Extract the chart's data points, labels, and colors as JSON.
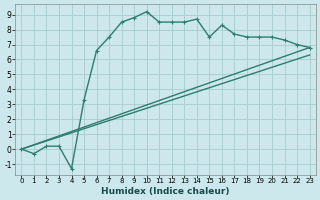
{
  "xlabel": "Humidex (Indice chaleur)",
  "bg_color": "#cce8ec",
  "line_color": "#2e7d6e",
  "grid_color": "#a8cccc",
  "xlim": [
    -0.5,
    23.5
  ],
  "ylim": [
    -1.7,
    9.7
  ],
  "xticks": [
    0,
    1,
    2,
    3,
    4,
    5,
    6,
    7,
    8,
    9,
    10,
    11,
    12,
    13,
    14,
    15,
    16,
    17,
    18,
    19,
    20,
    21,
    22,
    23
  ],
  "yticks": [
    -1,
    0,
    1,
    2,
    3,
    4,
    5,
    6,
    7,
    8,
    9
  ],
  "line1_x": [
    0,
    1,
    2,
    3,
    4,
    5,
    6,
    7,
    8,
    9,
    10,
    11,
    12,
    13,
    14,
    15,
    16,
    17,
    18,
    19,
    20,
    21,
    22,
    23
  ],
  "line1_y": [
    0,
    -0.3,
    0.2,
    0.2,
    -1.3,
    3.3,
    6.6,
    7.5,
    8.5,
    8.8,
    9.2,
    8.5,
    8.5,
    8.5,
    8.7,
    7.5,
    8.3,
    7.7,
    7.5,
    7.5,
    7.5,
    7.3,
    7.0,
    6.8
  ],
  "line2_x": [
    0,
    23
  ],
  "line2_y": [
    0,
    6.8
  ],
  "line3_x": [
    0,
    23
  ],
  "line3_y": [
    0,
    6.3
  ],
  "markersize": 3.5,
  "linewidth": 1.0
}
